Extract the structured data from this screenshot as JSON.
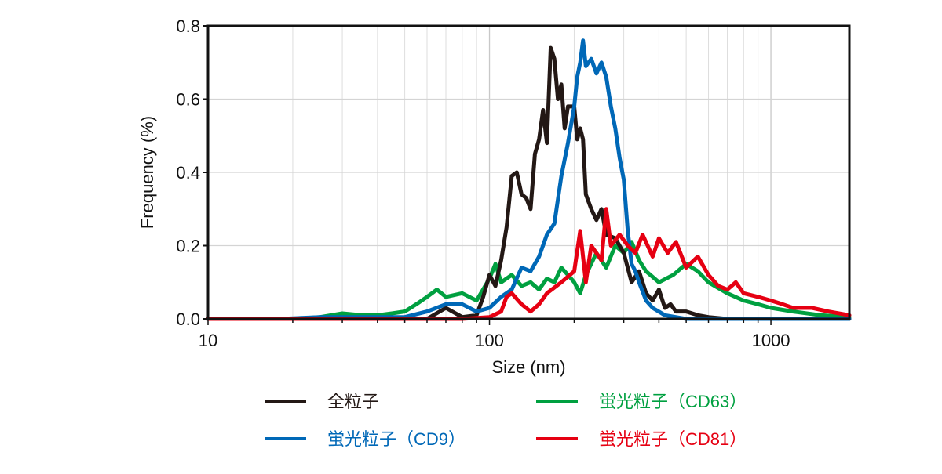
{
  "chart_data": {
    "type": "line",
    "title": "",
    "xlabel": "Size (nm)",
    "ylabel": "Frequency (%)",
    "xscale": "log",
    "xlim": [
      10,
      1900
    ],
    "ylim": [
      0,
      0.8
    ],
    "x_ticks": [
      10,
      100,
      1000
    ],
    "x_tick_labels": [
      "10",
      "100",
      "1000"
    ],
    "y_ticks": [
      0,
      0.2,
      0.4,
      0.6,
      0.8
    ],
    "y_tick_labels": [
      "0.0",
      "0.2",
      "0.4",
      "0.6",
      "0.8"
    ],
    "grid": true,
    "legend_position": "bottom",
    "series": [
      {
        "name": "全粒子",
        "color": "#231815",
        "points": [
          [
            10,
            0
          ],
          [
            20,
            0
          ],
          [
            40,
            0
          ],
          [
            60,
            0
          ],
          [
            70,
            0.03
          ],
          [
            80,
            0.005
          ],
          [
            90,
            0.01
          ],
          [
            95,
            0.06
          ],
          [
            100,
            0.12
          ],
          [
            105,
            0.09
          ],
          [
            110,
            0.16
          ],
          [
            115,
            0.25
          ],
          [
            120,
            0.39
          ],
          [
            125,
            0.4
          ],
          [
            130,
            0.34
          ],
          [
            135,
            0.33
          ],
          [
            140,
            0.3
          ],
          [
            145,
            0.45
          ],
          [
            150,
            0.49
          ],
          [
            155,
            0.57
          ],
          [
            160,
            0.48
          ],
          [
            165,
            0.74
          ],
          [
            170,
            0.71
          ],
          [
            175,
            0.6
          ],
          [
            180,
            0.64
          ],
          [
            185,
            0.52
          ],
          [
            190,
            0.58
          ],
          [
            200,
            0.58
          ],
          [
            205,
            0.49
          ],
          [
            210,
            0.52
          ],
          [
            215,
            0.49
          ],
          [
            220,
            0.34
          ],
          [
            230,
            0.3
          ],
          [
            240,
            0.27
          ],
          [
            250,
            0.3
          ],
          [
            260,
            0.23
          ],
          [
            280,
            0.22
          ],
          [
            300,
            0.18
          ],
          [
            320,
            0.1
          ],
          [
            340,
            0.13
          ],
          [
            360,
            0.07
          ],
          [
            380,
            0.05
          ],
          [
            400,
            0.08
          ],
          [
            420,
            0.03
          ],
          [
            440,
            0.04
          ],
          [
            460,
            0.02
          ],
          [
            500,
            0.02
          ],
          [
            550,
            0.01
          ],
          [
            600,
            0.005
          ],
          [
            700,
            0
          ],
          [
            1900,
            0
          ]
        ]
      },
      {
        "name": "蛍光粒子（CD9）",
        "color": "#0068B7",
        "points": [
          [
            10,
            0
          ],
          [
            18,
            0
          ],
          [
            25,
            0.005
          ],
          [
            40,
            0.005
          ],
          [
            50,
            0.005
          ],
          [
            60,
            0.02
          ],
          [
            70,
            0.04
          ],
          [
            80,
            0.04
          ],
          [
            90,
            0.02
          ],
          [
            100,
            0.03
          ],
          [
            110,
            0.06
          ],
          [
            120,
            0.08
          ],
          [
            130,
            0.14
          ],
          [
            140,
            0.13
          ],
          [
            150,
            0.17
          ],
          [
            160,
            0.23
          ],
          [
            170,
            0.26
          ],
          [
            180,
            0.39
          ],
          [
            190,
            0.48
          ],
          [
            200,
            0.58
          ],
          [
            205,
            0.66
          ],
          [
            210,
            0.7
          ],
          [
            215,
            0.76
          ],
          [
            220,
            0.69
          ],
          [
            230,
            0.71
          ],
          [
            240,
            0.67
          ],
          [
            250,
            0.7
          ],
          [
            260,
            0.66
          ],
          [
            270,
            0.58
          ],
          [
            280,
            0.52
          ],
          [
            290,
            0.44
          ],
          [
            300,
            0.38
          ],
          [
            310,
            0.24
          ],
          [
            320,
            0.15
          ],
          [
            330,
            0.13
          ],
          [
            340,
            0.1
          ],
          [
            360,
            0.05
          ],
          [
            380,
            0.03
          ],
          [
            420,
            0.01
          ],
          [
            500,
            0
          ],
          [
            1900,
            0
          ]
        ]
      },
      {
        "name": "蛍光粒子（CD63）",
        "color": "#00A040",
        "points": [
          [
            10,
            0
          ],
          [
            20,
            0
          ],
          [
            25,
            0.005
          ],
          [
            30,
            0.015
          ],
          [
            35,
            0.01
          ],
          [
            40,
            0.01
          ],
          [
            45,
            0.015
          ],
          [
            50,
            0.02
          ],
          [
            55,
            0.04
          ],
          [
            60,
            0.06
          ],
          [
            65,
            0.08
          ],
          [
            70,
            0.06
          ],
          [
            80,
            0.07
          ],
          [
            90,
            0.05
          ],
          [
            100,
            0.11
          ],
          [
            105,
            0.15
          ],
          [
            110,
            0.1
          ],
          [
            120,
            0.12
          ],
          [
            130,
            0.09
          ],
          [
            140,
            0.1
          ],
          [
            150,
            0.08
          ],
          [
            160,
            0.11
          ],
          [
            170,
            0.1
          ],
          [
            180,
            0.14
          ],
          [
            190,
            0.12
          ],
          [
            200,
            0.1
          ],
          [
            210,
            0.07
          ],
          [
            220,
            0.12
          ],
          [
            240,
            0.18
          ],
          [
            260,
            0.14
          ],
          [
            280,
            0.2
          ],
          [
            300,
            0.18
          ],
          [
            320,
            0.21
          ],
          [
            340,
            0.16
          ],
          [
            360,
            0.13
          ],
          [
            400,
            0.1
          ],
          [
            450,
            0.12
          ],
          [
            500,
            0.15
          ],
          [
            550,
            0.13
          ],
          [
            600,
            0.1
          ],
          [
            700,
            0.07
          ],
          [
            800,
            0.05
          ],
          [
            900,
            0.04
          ],
          [
            1000,
            0.03
          ],
          [
            1200,
            0.02
          ],
          [
            1500,
            0.01
          ],
          [
            1900,
            0.005
          ]
        ]
      },
      {
        "name": "蛍光粒子（CD81）",
        "color": "#E60012",
        "points": [
          [
            10,
            0
          ],
          [
            20,
            0
          ],
          [
            40,
            0
          ],
          [
            60,
            0
          ],
          [
            80,
            0
          ],
          [
            100,
            0.005
          ],
          [
            110,
            0.02
          ],
          [
            115,
            0.06
          ],
          [
            120,
            0.07
          ],
          [
            130,
            0.04
          ],
          [
            140,
            0.02
          ],
          [
            150,
            0.04
          ],
          [
            160,
            0.07
          ],
          [
            180,
            0.1
          ],
          [
            200,
            0.13
          ],
          [
            210,
            0.24
          ],
          [
            220,
            0.1
          ],
          [
            230,
            0.2
          ],
          [
            250,
            0.16
          ],
          [
            260,
            0.3
          ],
          [
            270,
            0.2
          ],
          [
            290,
            0.23
          ],
          [
            310,
            0.2
          ],
          [
            330,
            0.18
          ],
          [
            350,
            0.23
          ],
          [
            380,
            0.17
          ],
          [
            400,
            0.22
          ],
          [
            430,
            0.18
          ],
          [
            460,
            0.21
          ],
          [
            500,
            0.14
          ],
          [
            550,
            0.17
          ],
          [
            600,
            0.12
          ],
          [
            650,
            0.09
          ],
          [
            700,
            0.08
          ],
          [
            750,
            0.1
          ],
          [
            800,
            0.07
          ],
          [
            900,
            0.06
          ],
          [
            1000,
            0.05
          ],
          [
            1100,
            0.04
          ],
          [
            1200,
            0.03
          ],
          [
            1400,
            0.03
          ],
          [
            1600,
            0.02
          ],
          [
            1900,
            0.01
          ]
        ]
      }
    ]
  }
}
